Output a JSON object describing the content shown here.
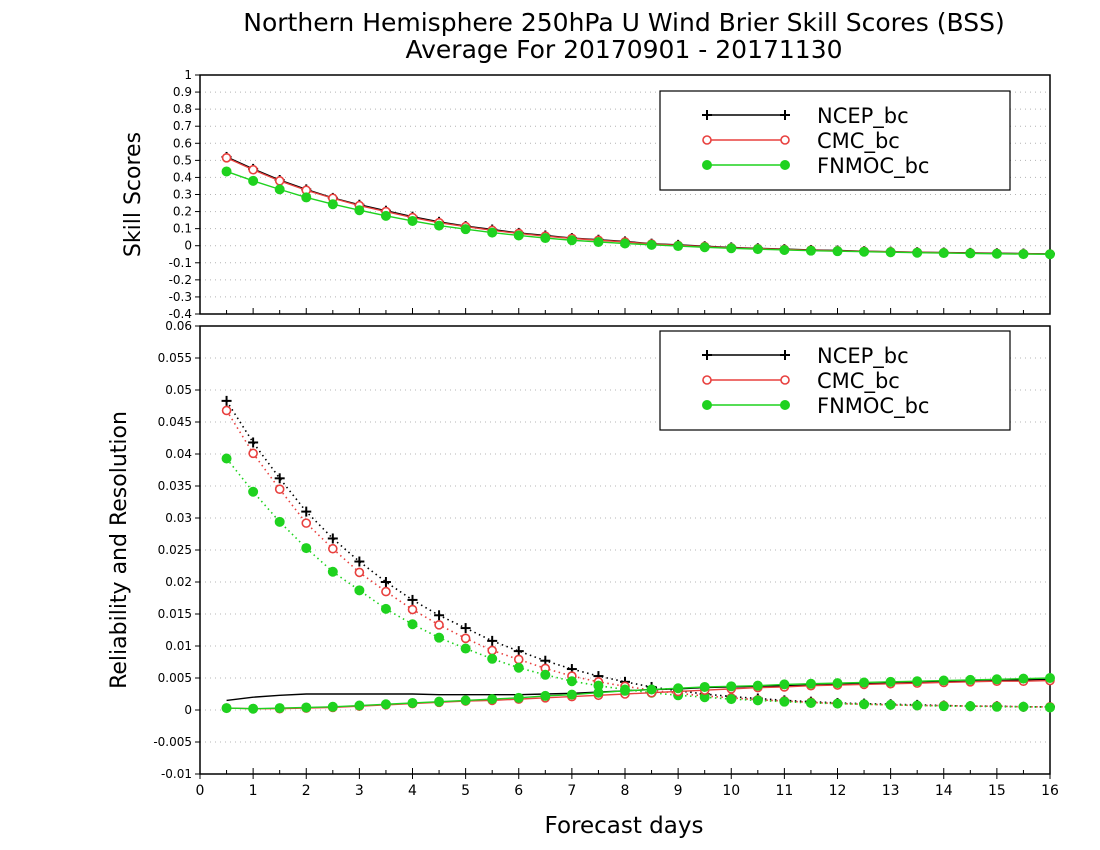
{
  "title": {
    "line1": "Northern Hemisphere 250hPa U Wind Brier Skill Scores (BSS)",
    "line2": "Average For 20170901 - 20171130"
  },
  "xlabel": "Forecast days",
  "colors": {
    "NCEP_bc": "#000000",
    "CMC_bc": "#e8403e",
    "FNMOC_bc": "#1fd21f",
    "grid": "#b4b4b4"
  },
  "chart_data": [
    {
      "type": "line",
      "ylabel": "Skill Scores",
      "xlim": [
        0,
        16
      ],
      "ylim": [
        -0.4,
        1
      ],
      "yticks": [
        -0.4,
        -0.3,
        -0.2,
        -0.1,
        0,
        0.1,
        0.2,
        0.3,
        0.4,
        0.5,
        0.6,
        0.7,
        0.8,
        0.9,
        1
      ],
      "ytick_labels": [
        "-0.4",
        "-0.3",
        "-0.2",
        "-0.1",
        "0",
        "0.1",
        "0.2",
        "0.3",
        "0.4",
        "0.5",
        "0.6",
        "0.7",
        "0.8",
        "0.9",
        "1"
      ],
      "grid": "horizontal dotted",
      "legend": "top-right",
      "x": [
        0.5,
        1,
        1.5,
        2,
        2.5,
        3,
        3.5,
        4,
        4.5,
        5,
        5.5,
        6,
        6.5,
        7,
        7.5,
        8,
        8.5,
        9,
        9.5,
        10,
        10.5,
        11,
        11.5,
        12,
        12.5,
        13,
        13.5,
        14,
        14.5,
        15,
        15.5,
        16
      ],
      "series": [
        {
          "name": "NCEP_bc",
          "marker": "plus",
          "style": "solid",
          "values": [
            0.52,
            0.45,
            0.385,
            0.33,
            0.28,
            0.24,
            0.205,
            0.17,
            0.14,
            0.115,
            0.095,
            0.075,
            0.06,
            0.045,
            0.035,
            0.025,
            0.012,
            0.005,
            -0.003,
            -0.01,
            -0.015,
            -0.02,
            -0.025,
            -0.028,
            -0.032,
            -0.035,
            -0.038,
            -0.04,
            -0.042,
            -0.044,
            -0.046,
            -0.048
          ]
        },
        {
          "name": "CMC_bc",
          "marker": "open-circle",
          "style": "solid",
          "values": [
            0.515,
            0.445,
            0.38,
            0.325,
            0.278,
            0.235,
            0.2,
            0.165,
            0.135,
            0.112,
            0.09,
            0.072,
            0.056,
            0.043,
            0.032,
            0.022,
            0.01,
            0.002,
            -0.005,
            -0.012,
            -0.017,
            -0.022,
            -0.026,
            -0.03,
            -0.033,
            -0.036,
            -0.039,
            -0.041,
            -0.043,
            -0.045,
            -0.047,
            -0.049
          ]
        },
        {
          "name": "FNMOC_bc",
          "marker": "filled-circle",
          "style": "solid",
          "values": [
            0.435,
            0.38,
            0.33,
            0.283,
            0.243,
            0.208,
            0.175,
            0.145,
            0.118,
            0.097,
            0.077,
            0.06,
            0.045,
            0.032,
            0.022,
            0.013,
            0.005,
            -0.002,
            -0.009,
            -0.015,
            -0.02,
            -0.025,
            -0.029,
            -0.032,
            -0.035,
            -0.038,
            -0.041,
            -0.043,
            -0.045,
            -0.047,
            -0.049,
            -0.05
          ]
        }
      ]
    },
    {
      "type": "line",
      "ylabel": "Reliability and Resolution",
      "xlim": [
        0,
        16
      ],
      "ylim": [
        -0.01,
        0.06
      ],
      "yticks": [
        -0.01,
        -0.005,
        0,
        0.005,
        0.01,
        0.015,
        0.02,
        0.025,
        0.03,
        0.035,
        0.04,
        0.045,
        0.05,
        0.055,
        0.06
      ],
      "ytick_labels": [
        "-0.01",
        "-0.005",
        "0",
        "0.005",
        "0.01",
        "0.015",
        "0.02",
        "0.025",
        "0.03",
        "0.035",
        "0.04",
        "0.045",
        "0.05",
        "0.055",
        "0.06"
      ],
      "xticks": [
        0,
        1,
        2,
        3,
        4,
        5,
        6,
        7,
        8,
        9,
        10,
        11,
        12,
        13,
        14,
        15,
        16
      ],
      "xtick_labels": [
        "0",
        "1",
        "2",
        "3",
        "4",
        "5",
        "6",
        "7",
        "8",
        "9",
        "10",
        "11",
        "12",
        "13",
        "14",
        "15",
        "16"
      ],
      "grid": "horizontal dotted",
      "legend": "top-right",
      "x": [
        0.5,
        1,
        1.5,
        2,
        2.5,
        3,
        3.5,
        4,
        4.5,
        5,
        5.5,
        6,
        6.5,
        7,
        7.5,
        8,
        8.5,
        9,
        9.5,
        10,
        10.5,
        11,
        11.5,
        12,
        12.5,
        13,
        13.5,
        14,
        14.5,
        15,
        15.5,
        16
      ],
      "series": [
        {
          "name": "NCEP_bc",
          "quantity": "resolution",
          "marker": "plus",
          "style": "dotted",
          "values": [
            0.0483,
            0.0418,
            0.0362,
            0.031,
            0.0268,
            0.0232,
            0.02,
            0.0172,
            0.0148,
            0.0128,
            0.0108,
            0.0092,
            0.0077,
            0.0064,
            0.0053,
            0.0044,
            0.0036,
            0.003,
            0.0025,
            0.0021,
            0.0018,
            0.0015,
            0.0013,
            0.0011,
            0.001,
            0.0009,
            0.0008,
            0.0007,
            0.0006,
            0.0006,
            0.0005,
            0.0005
          ]
        },
        {
          "name": "CMC_bc",
          "quantity": "resolution",
          "marker": "open-circle",
          "style": "dotted",
          "values": [
            0.0468,
            0.0401,
            0.0345,
            0.0292,
            0.0252,
            0.0215,
            0.0185,
            0.0157,
            0.0133,
            0.0112,
            0.0093,
            0.0079,
            0.0065,
            0.0053,
            0.0044,
            0.0037,
            0.0031,
            0.0026,
            0.0022,
            0.0019,
            0.0016,
            0.0014,
            0.0012,
            0.001,
            0.0009,
            0.0008,
            0.0007,
            0.0007,
            0.0006,
            0.0006,
            0.0005,
            0.0005
          ]
        },
        {
          "name": "FNMOC_bc",
          "quantity": "resolution",
          "marker": "filled-circle",
          "style": "dotted",
          "values": [
            0.0393,
            0.0341,
            0.0294,
            0.0253,
            0.0216,
            0.0187,
            0.0158,
            0.0134,
            0.0113,
            0.0096,
            0.008,
            0.0066,
            0.0055,
            0.0045,
            0.0038,
            0.0032,
            0.0027,
            0.0023,
            0.002,
            0.0017,
            0.0015,
            0.0013,
            0.0011,
            0.001,
            0.0009,
            0.0008,
            0.0007,
            0.0006,
            0.0006,
            0.0005,
            0.0005,
            0.0004
          ]
        },
        {
          "name": "NCEP_bc",
          "quantity": "reliability",
          "marker": "none",
          "style": "solid",
          "values": [
            0.0015,
            0.002,
            0.0023,
            0.0025,
            0.0025,
            0.0025,
            0.0025,
            0.0025,
            0.0024,
            0.0024,
            0.0024,
            0.0024,
            0.0025,
            0.0026,
            0.0028,
            0.003,
            0.0032,
            0.0033,
            0.0035,
            0.0036,
            0.0037,
            0.0038,
            0.0039,
            0.004,
            0.0041,
            0.0042,
            0.0043,
            0.0044,
            0.0045,
            0.0046,
            0.0047,
            0.0048
          ]
        },
        {
          "name": "CMC_bc",
          "quantity": "reliability",
          "marker": "open-circle",
          "style": "solid",
          "values": [
            0.0003,
            0.0002,
            0.0002,
            0.0003,
            0.0004,
            0.0006,
            0.0008,
            0.001,
            0.0012,
            0.0014,
            0.0015,
            0.0017,
            0.0019,
            0.0021,
            0.0023,
            0.0025,
            0.0027,
            0.0029,
            0.0031,
            0.0033,
            0.0035,
            0.0036,
            0.0038,
            0.0039,
            0.004,
            0.0041,
            0.0042,
            0.0043,
            0.0044,
            0.0045,
            0.0045,
            0.0046
          ]
        },
        {
          "name": "FNMOC_bc",
          "quantity": "reliability",
          "marker": "filled-circle",
          "style": "solid",
          "values": [
            0.0003,
            0.0002,
            0.0003,
            0.0004,
            0.0005,
            0.0007,
            0.0009,
            0.0011,
            0.0013,
            0.0015,
            0.0017,
            0.0019,
            0.0022,
            0.0024,
            0.0027,
            0.003,
            0.0032,
            0.0034,
            0.0036,
            0.0037,
            0.0038,
            0.004,
            0.0041,
            0.0042,
            0.0043,
            0.0044,
            0.0045,
            0.0046,
            0.0047,
            0.0048,
            0.0049,
            0.005
          ]
        }
      ]
    }
  ]
}
